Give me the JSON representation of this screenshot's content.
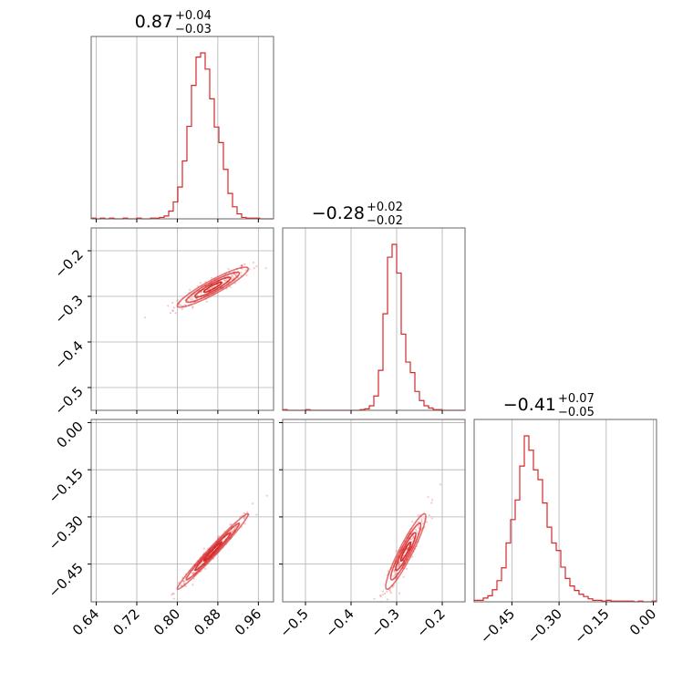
{
  "chart_data": {
    "type": "scatter",
    "color": "#d62728",
    "panels": [
      {
        "row": 0,
        "col": 0,
        "kind": "hist",
        "var": 0,
        "title": {
          "value": "0.87",
          "plus": "+0.04",
          "minus": "−0.03"
        }
      },
      {
        "row": 1,
        "col": 0,
        "kind": "2d",
        "xvar": 0,
        "yvar": 1
      },
      {
        "row": 1,
        "col": 1,
        "kind": "hist",
        "var": 1,
        "title": {
          "value": "−0.28",
          "plus": "+0.02",
          "minus": "−0.02"
        }
      },
      {
        "row": 2,
        "col": 0,
        "kind": "2d",
        "xvar": 0,
        "yvar": 2
      },
      {
        "row": 2,
        "col": 1,
        "kind": "2d",
        "xvar": 1,
        "yvar": 2
      },
      {
        "row": 2,
        "col": 2,
        "kind": "hist",
        "var": 2,
        "title": {
          "value": "−0.41",
          "plus": "+0.07",
          "minus": "−0.05"
        }
      }
    ],
    "variables": [
      {
        "range": [
          0.63,
          0.99
        ],
        "ticks": [
          0.64,
          0.72,
          0.8,
          0.88,
          0.96
        ],
        "tick_labels": [
          "0.64",
          "0.72",
          "0.80",
          "0.88",
          "0.96"
        ],
        "hist_counts": [
          1,
          0,
          1,
          0,
          1,
          0,
          0,
          1,
          0,
          0,
          1,
          0,
          0,
          1,
          1,
          2,
          4,
          11,
          24,
          45,
          82,
          131,
          189,
          229,
          235,
          212,
          170,
          130,
          108,
          70,
          36,
          17,
          7,
          2,
          1,
          1,
          1,
          0,
          0,
          0
        ]
      },
      {
        "range": [
          -0.55,
          -0.15
        ],
        "ticks": [
          -0.5,
          -0.4,
          -0.3,
          -0.2
        ],
        "tick_labels": [
          "−0.5",
          "−0.4",
          "−0.3",
          "−0.2"
        ],
        "tick_labels_y": [
          "−0.5",
          "−0.4",
          "−0.3",
          "−0.2"
        ],
        "hist_counts": [
          1,
          0,
          0,
          0,
          0,
          1,
          0,
          0,
          0,
          0,
          0,
          0,
          0,
          0,
          0,
          0,
          0,
          1,
          2,
          6,
          19,
          53,
          128,
          203,
          220,
          182,
          101,
          64,
          50,
          25,
          13,
          6,
          3,
          1,
          1,
          0,
          0,
          0,
          0,
          0
        ]
      },
      {
        "range": [
          -0.57,
          0.01
        ],
        "ticks": [
          -0.45,
          -0.3,
          -0.15,
          0.0
        ],
        "tick_labels": [
          "−0.45",
          "−0.30",
          "−0.15",
          "0.00"
        ],
        "hist_counts": [
          2,
          2,
          5,
          8,
          16,
          28,
          45,
          78,
          109,
          135,
          180,
          220,
          201,
          175,
          162,
          131,
          99,
          78,
          68,
          46,
          31,
          21,
          15,
          10,
          7,
          4,
          2,
          2,
          1,
          2,
          1,
          1,
          1,
          1,
          1,
          0,
          1,
          0,
          0,
          1
        ]
      }
    ],
    "grid": true,
    "legend": "none"
  }
}
